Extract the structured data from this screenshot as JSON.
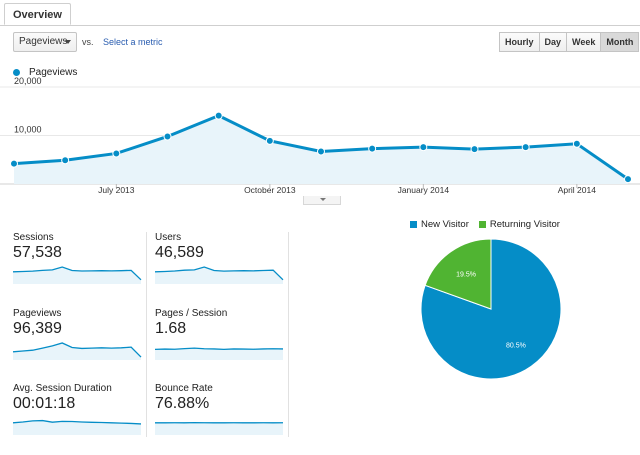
{
  "tab": {
    "label": "Overview"
  },
  "controls": {
    "metric_value": "Pageviews",
    "vs_label": "vs.",
    "select_metric": "Select a metric",
    "granularity": [
      {
        "label": "Hourly",
        "active": false
      },
      {
        "label": "Day",
        "active": false
      },
      {
        "label": "Week",
        "active": false
      },
      {
        "label": "Month",
        "active": true
      }
    ]
  },
  "colors": {
    "accent": "#058dc7",
    "area_fill": "#e8f4fa",
    "returning": "#50b432",
    "sparkline": "#058dc7"
  },
  "chart_data": [
    {
      "type": "line",
      "title": "",
      "series": [
        {
          "name": "Pageviews",
          "values": [
            4200,
            4900,
            6300,
            9800,
            14100,
            8900,
            6700,
            7300,
            7600,
            7200,
            7600,
            8300,
            1000
          ]
        }
      ],
      "x_tick_labels": [
        "July 2013",
        "October 2013",
        "January 2014",
        "April 2014"
      ],
      "y_tick_labels": [
        "20,000",
        "10,000"
      ],
      "ylim": [
        0,
        20000
      ],
      "grid": true,
      "legend": "top-left"
    },
    {
      "type": "pie",
      "categories": [
        "New Visitor",
        "Returning Visitor"
      ],
      "values": [
        80.5,
        19.5
      ],
      "value_labels": [
        "80.5%",
        "19.5%"
      ],
      "legend": "top"
    }
  ],
  "metrics": [
    {
      "label": "Sessions",
      "value": "57,538",
      "spark": [
        7,
        7.2,
        7.4,
        7.9,
        8.2,
        10,
        7.8,
        7.5,
        7.6,
        7.7,
        7.6,
        7.7,
        7.9,
        2
      ]
    },
    {
      "label": "Users",
      "value": "46,589",
      "spark": [
        7,
        7.2,
        7.5,
        8,
        8.2,
        10,
        7.8,
        7.4,
        7.6,
        7.7,
        7.6,
        7.8,
        8,
        2
      ]
    },
    {
      "label": "Pageviews",
      "value": "96,389",
      "spark": [
        4.5,
        5,
        5.5,
        6.8,
        8.2,
        10,
        7.2,
        6.6,
        6.8,
        7,
        6.8,
        7,
        7.4,
        1.2
      ]
    },
    {
      "label": "Pages / Session",
      "value": "1.68",
      "spark": [
        6,
        6.2,
        6.1,
        6.5,
        6.8,
        6.4,
        6.3,
        6,
        6.3,
        6.2,
        6.1,
        6.3,
        6.4,
        6.3
      ]
    },
    {
      "label": "Avg. Session Duration",
      "value": "00:01:18",
      "spark": [
        7,
        7.5,
        8.2,
        8.4,
        7.4,
        7.9,
        7.8,
        7.5,
        7.3,
        7.2,
        7,
        6.8,
        6.6,
        6.3
      ]
    },
    {
      "label": "Bounce Rate",
      "value": "76.88%",
      "spark": [
        7,
        7,
        7.05,
        7,
        7.1,
        7.05,
        7,
        7,
        7.05,
        7,
        7,
        7.05,
        7,
        7.05
      ]
    }
  ]
}
